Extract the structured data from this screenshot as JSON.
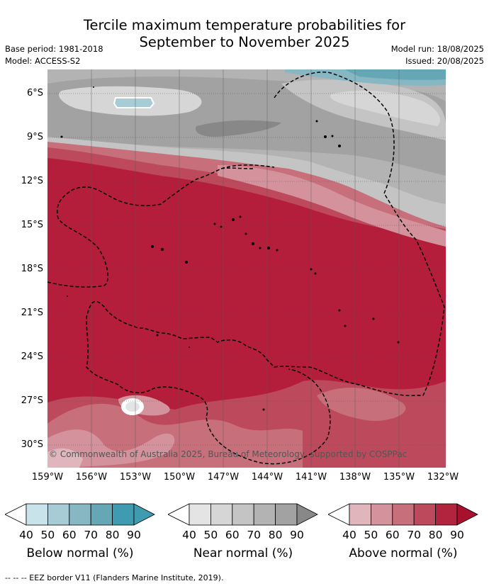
{
  "title_line1": "Tercile maximum temperature probabilities for",
  "title_line2": "September to November 2025",
  "base_period": "Base period: 1981-2018",
  "model": "Model: ACCESS-S2",
  "model_run": "Model run: 18/08/2025",
  "issued": "Issued: 20/08/2025",
  "map": {
    "lat_labels": [
      "6°S",
      "9°S",
      "12°S",
      "15°S",
      "18°S",
      "21°S",
      "24°S",
      "27°S",
      "30°S"
    ],
    "lon_labels": [
      "159°W",
      "156°W",
      "153°W",
      "150°W",
      "147°W",
      "144°W",
      "141°W",
      "138°W",
      "135°W",
      "132°W"
    ],
    "copyright": "© Commonwealth of Australia 2025, Bureau of Meteorology, supported by COSPPac"
  },
  "colorbars": [
    {
      "title": "Below normal (%)",
      "ticks": [
        "40",
        "50",
        "60",
        "70",
        "80",
        "90"
      ],
      "colors": [
        "#ffffff",
        "#c9e3ea",
        "#a8ccd5",
        "#86b7c3",
        "#66a7b6",
        "#3f9bb0",
        "#3f9bb0"
      ]
    },
    {
      "title": "Near normal (%)",
      "ticks": [
        "40",
        "50",
        "60",
        "70",
        "80",
        "90"
      ],
      "colors": [
        "#ffffff",
        "#e4e4e4",
        "#d6d6d6",
        "#c4c4c4",
        "#b3b3b3",
        "#a2a2a2",
        "#888888"
      ]
    },
    {
      "title": "Above normal (%)",
      "ticks": [
        "40",
        "50",
        "60",
        "70",
        "80",
        "90"
      ],
      "colors": [
        "#ffffff",
        "#e0b5bc",
        "#d4939c",
        "#c86f7c",
        "#bd4a5c",
        "#b2233d",
        "#a8102e"
      ]
    }
  ],
  "footnote": "--  --  -- EEZ border V11 (Flanders Marine Institute, 2019)."
}
